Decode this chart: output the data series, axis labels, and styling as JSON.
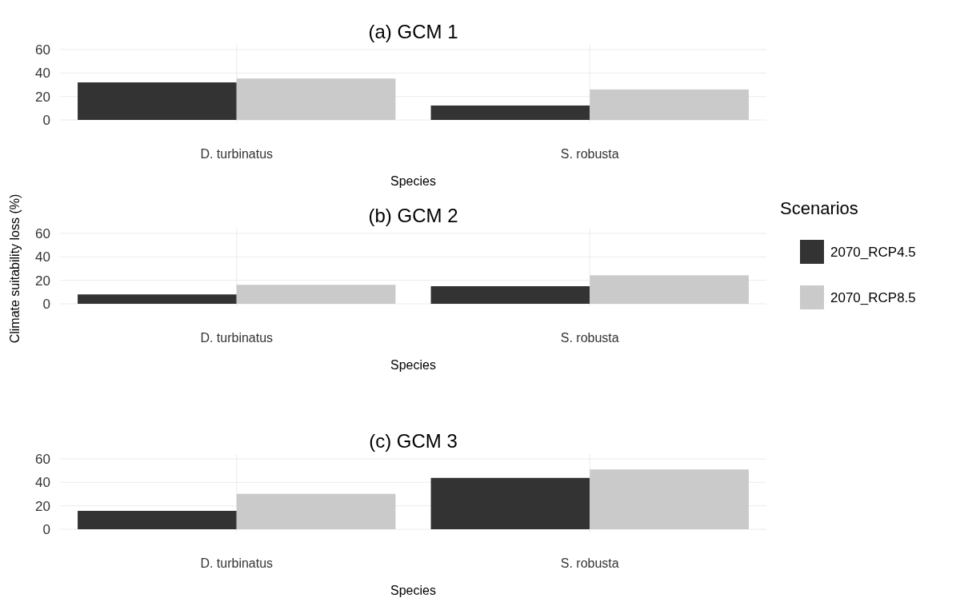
{
  "chart_data": [
    {
      "type": "bar",
      "title": "(a) GCM 1",
      "xlabel": "Species",
      "categories": [
        "D. turbinatus",
        "S. robusta"
      ],
      "series": [
        {
          "color": "#333333",
          "values": [
            32,
            12.3
          ]
        },
        {
          "color": "#cacaca",
          "values": [
            35.3,
            26
          ]
        }
      ],
      "ylim": [
        0,
        60
      ],
      "yticks": [
        0,
        20,
        40,
        60
      ],
      "grid": true
    },
    {
      "type": "bar",
      "title": "(b) GCM 2",
      "xlabel": "Species",
      "ylabel": "Climate suitability loss (%)",
      "legend": "right",
      "legend_title": "Scenarios",
      "categories": [
        "D. turbinatus",
        "S. robusta"
      ],
      "series": [
        {
          "name": "2070_RCP4.5",
          "color": "#333333",
          "values": [
            8,
            15
          ]
        },
        {
          "name": "2070_RCP8.5",
          "color": "#cacaca",
          "values": [
            16.2,
            24.3
          ]
        }
      ],
      "ylim": [
        0,
        60
      ],
      "yticks": [
        0,
        20,
        40,
        60
      ],
      "grid": true
    },
    {
      "type": "bar",
      "title": "(c) GCM 3",
      "xlabel": "Species",
      "categories": [
        "D. turbinatus",
        "S. robusta"
      ],
      "series": [
        {
          "color": "#333333",
          "values": [
            15.7,
            43.8
          ]
        },
        {
          "color": "#cacaca",
          "values": [
            30.2,
            51
          ]
        }
      ],
      "ylim": [
        0,
        60
      ],
      "yticks": [
        0,
        20,
        40,
        60
      ],
      "grid": true
    }
  ]
}
